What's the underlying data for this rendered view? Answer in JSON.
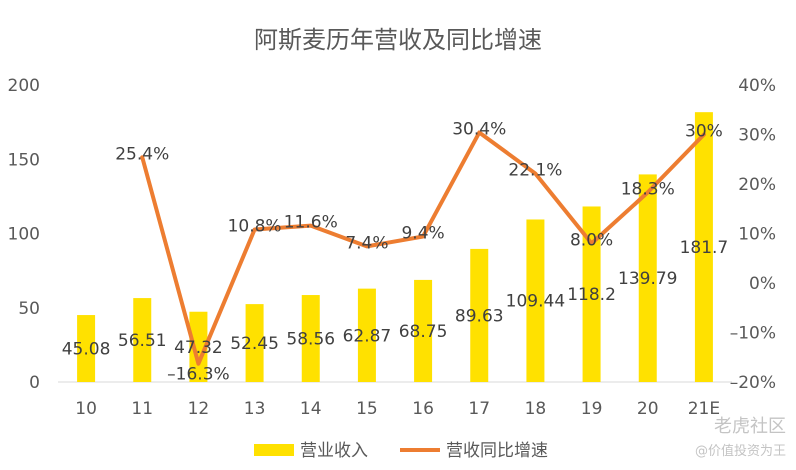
{
  "chart_data": {
    "type": "bar",
    "title": "阿斯麦历年营收及同比增速",
    "categories": [
      "10",
      "11",
      "12",
      "13",
      "14",
      "15",
      "16",
      "17",
      "18",
      "19",
      "20",
      "21E"
    ],
    "series": [
      {
        "name": "营业收入",
        "type": "bar",
        "axis": "left",
        "color": "#FFE100",
        "values": [
          45.08,
          56.51,
          47.32,
          52.45,
          58.56,
          62.87,
          68.75,
          89.63,
          109.44,
          118.2,
          139.79,
          181.7
        ],
        "labels": [
          "45.08",
          "56.51",
          "47.32",
          "52.45",
          "58.56",
          "62.87",
          "68.75",
          "89.63",
          "109.44",
          "118.2",
          "139.79",
          "181.7"
        ]
      },
      {
        "name": "营收同比增速",
        "type": "line",
        "axis": "right",
        "color": "#ED7D31",
        "values": [
          null,
          25.4,
          -16.3,
          10.8,
          11.6,
          7.4,
          9.4,
          30.4,
          22.1,
          8.0,
          18.3,
          30
        ],
        "labels": [
          "",
          "25.4%",
          "–16.3%",
          "10.8%",
          "11.6%",
          "7.4%",
          "9.4%",
          "30.4%",
          "22.1%",
          "8.0%",
          "18.3%",
          "30%"
        ]
      }
    ],
    "y_left": {
      "min": 0,
      "max": 200,
      "ticks": [
        "0",
        "50",
        "100",
        "150",
        "200"
      ]
    },
    "y_right": {
      "min": -20,
      "max": 40,
      "ticks": [
        "–20%",
        "–10%",
        "0%",
        "10%",
        "20%",
        "30%",
        "40%"
      ]
    },
    "grid": false,
    "legend_position": "bottom"
  },
  "watermark": {
    "line1": "老虎社区",
    "line2": "@价值投资为王"
  }
}
